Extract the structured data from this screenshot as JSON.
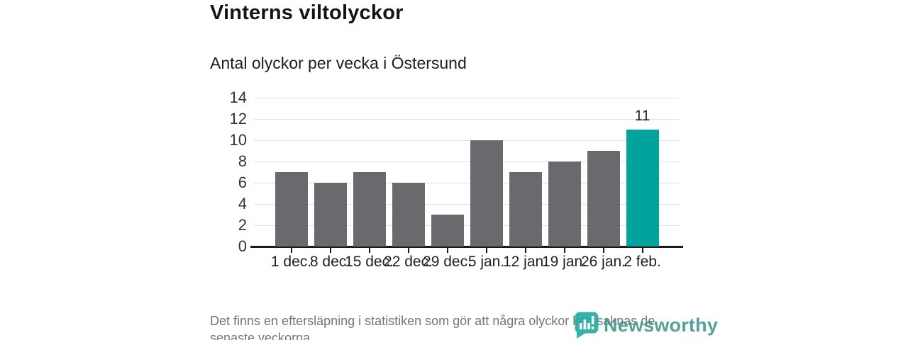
{
  "header": {
    "title": "Vinterns viltolyckor",
    "subtitle": "Antal olyckor per vecka i Östersund"
  },
  "chart_data": {
    "type": "bar",
    "title": "Vinterns viltolyckor",
    "subtitle": "Antal olyckor per vecka i Östersund",
    "categories": [
      "1 dec.",
      "8 dec.",
      "15 dec.",
      "22 dec.",
      "29 dec.",
      "5 jan.",
      "12 jan.",
      "19 jan.",
      "26 jan.",
      "2 feb."
    ],
    "values": [
      7,
      6,
      7,
      6,
      3,
      10,
      7,
      8,
      9,
      11
    ],
    "highlight_index": 9,
    "highlight_label": "11",
    "xlabel": "",
    "ylabel": "",
    "ylim": [
      0,
      14
    ],
    "yticks": [
      0,
      2,
      4,
      6,
      8,
      10,
      12,
      14
    ],
    "grid": true,
    "legend": false,
    "colors": {
      "bar": "#6b686e",
      "highlight": "#00a49c",
      "gridline": "#e2e2e2",
      "axis": "#1a1a1a",
      "tick_label": "#333333"
    }
  },
  "footer": {
    "note": "Det finns en eftersläpning i statistiken som gör att några olyckor kan saknas de senaste veckorna."
  },
  "logo": {
    "text": "Newsworthy",
    "icon": "newsworthy-pin-icon",
    "text_color": "#3f948e",
    "pin_color": "#1ca89f"
  }
}
